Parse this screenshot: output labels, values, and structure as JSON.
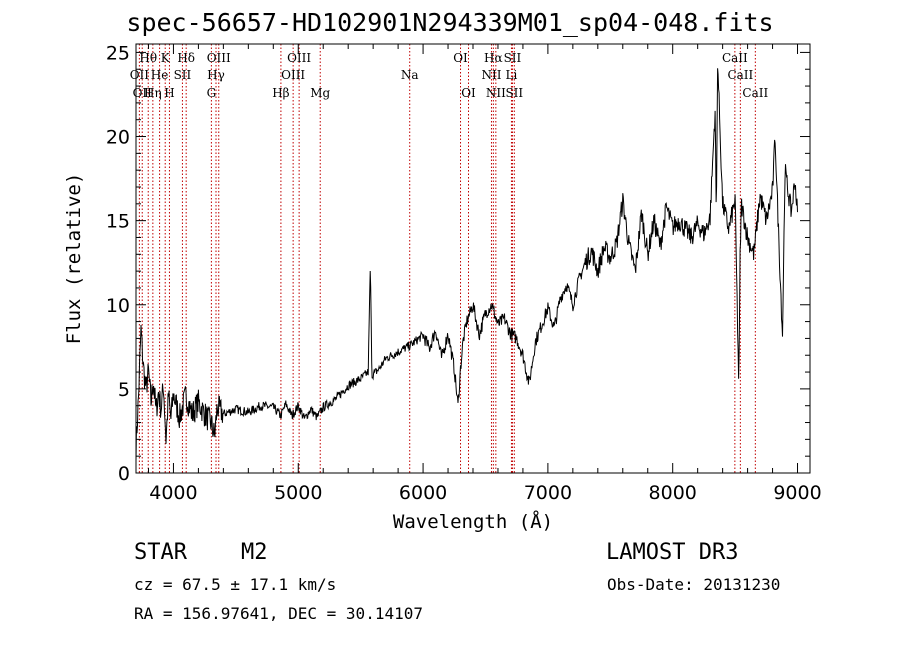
{
  "chart_data": {
    "type": "line",
    "title": "spec-56657-HD102901N294339M01_sp04-048.fits",
    "xlabel": "Wavelength (Å)",
    "ylabel": "Flux (relative)",
    "xlim": [
      3700,
      9100
    ],
    "ylim": [
      0,
      25.5
    ],
    "xticks": [
      4000,
      5000,
      6000,
      7000,
      8000,
      9000
    ],
    "yticks": [
      0,
      5,
      10,
      15,
      20,
      25
    ],
    "spectrum": {
      "x": [
        3700,
        3720,
        3740,
        3760,
        3780,
        3800,
        3820,
        3840,
        3860,
        3880,
        3900,
        3920,
        3940,
        3960,
        3980,
        4000,
        4050,
        4100,
        4150,
        4200,
        4250,
        4300,
        4330,
        4350,
        4400,
        4500,
        4600,
        4700,
        4800,
        4860,
        4900,
        4950,
        5000,
        5050,
        5100,
        5150,
        5200,
        5300,
        5400,
        5500,
        5560,
        5577,
        5590,
        5650,
        5700,
        5800,
        5900,
        6000,
        6050,
        6100,
        6150,
        6200,
        6250,
        6280,
        6300,
        6320,
        6350,
        6400,
        6450,
        6500,
        6550,
        6600,
        6650,
        6700,
        6750,
        6800,
        6850,
        6900,
        6950,
        7000,
        7050,
        7100,
        7150,
        7200,
        7250,
        7300,
        7350,
        7400,
        7450,
        7500,
        7550,
        7600,
        7650,
        7700,
        7750,
        7800,
        7850,
        7900,
        7950,
        8000,
        8050,
        8100,
        8150,
        8200,
        8250,
        8300,
        8340,
        8350,
        8360,
        8400,
        8450,
        8500,
        8530,
        8540,
        8550,
        8600,
        8650,
        8700,
        8750,
        8800,
        8820,
        8850,
        8880,
        8900,
        8950,
        8980,
        9000
      ],
      "y": [
        1.5,
        4.5,
        8.5,
        6.2,
        5.0,
        6.0,
        4.2,
        5.5,
        3.6,
        4.8,
        3.8,
        5.2,
        2.0,
        4.6,
        3.2,
        4.7,
        3.3,
        4.6,
        3.5,
        4.2,
        3.5,
        3.0,
        2.2,
        3.9,
        3.5,
        3.8,
        3.6,
        4.0,
        3.9,
        3.4,
        4.1,
        3.4,
        4.0,
        3.2,
        3.8,
        3.3,
        3.9,
        4.4,
        5.2,
        5.6,
        6.0,
        12.4,
        5.8,
        6.2,
        6.8,
        7.2,
        7.6,
        8.2,
        7.4,
        8.5,
        6.8,
        8.3,
        6.2,
        4.0,
        6.2,
        7.8,
        9.0,
        10.0,
        8.2,
        9.5,
        10.0,
        8.8,
        9.2,
        8.3,
        8.0,
        7.0,
        5.3,
        7.8,
        8.8,
        9.8,
        8.6,
        10.4,
        11.2,
        10.0,
        11.5,
        12.5,
        13.2,
        12.0,
        13.4,
        12.8,
        13.6,
        16.2,
        13.5,
        12.0,
        15.5,
        13.0,
        15.0,
        13.5,
        15.8,
        14.6,
        15.0,
        14.5,
        14.0,
        14.8,
        14.2,
        15.2,
        21.6,
        14.8,
        24.6,
        16.0,
        14.5,
        16.2,
        5.0,
        12.8,
        16.0,
        14.0,
        13.0,
        16.5,
        15.0,
        16.8,
        20.0,
        14.0,
        8.2,
        18.0,
        15.5,
        17.4,
        15.4
      ]
    },
    "lines": [
      {
        "x": 3727,
        "label": "OII",
        "row": 2
      },
      {
        "x": 3750,
        "label": "OII",
        "row": 3
      },
      {
        "x": 3798,
        "label": "Hθ",
        "row": 1
      },
      {
        "x": 3835,
        "label": "Hη",
        "row": 3
      },
      {
        "x": 3889,
        "label": "He",
        "row": 2
      },
      {
        "x": 3934,
        "label": "K",
        "row": 1
      },
      {
        "x": 3968,
        "label": "H",
        "row": 3
      },
      {
        "x": 4072,
        "label": "SII",
        "row": 2
      },
      {
        "x": 4102,
        "label": "Hδ",
        "row": 1
      },
      {
        "x": 4304,
        "label": "G",
        "row": 3
      },
      {
        "x": 4341,
        "label": "Hγ",
        "row": 2
      },
      {
        "x": 4363,
        "label": "OIII",
        "row": 1
      },
      {
        "x": 4861,
        "label": "Hβ",
        "row": 3
      },
      {
        "x": 4959,
        "label": "OIII",
        "row": 2
      },
      {
        "x": 5007,
        "label": "OIII",
        "row": 1
      },
      {
        "x": 5176,
        "label": "Mg",
        "row": 3
      },
      {
        "x": 5893,
        "label": "Na",
        "row": 2
      },
      {
        "x": 6300,
        "label": "OI",
        "row": 1
      },
      {
        "x": 6364,
        "label": "OI",
        "row": 3
      },
      {
        "x": 6548,
        "label": "NII",
        "row": 2
      },
      {
        "x": 6563,
        "label": "Hα",
        "row": 1
      },
      {
        "x": 6583,
        "label": "NII",
        "row": 3
      },
      {
        "x": 6708,
        "label": "Li",
        "row": 2
      },
      {
        "x": 6716,
        "label": "SII",
        "row": 1
      },
      {
        "x": 6731,
        "label": "SII",
        "row": 3
      },
      {
        "x": 8498,
        "label": "CaII",
        "row": 1
      },
      {
        "x": 8542,
        "label": "CaII",
        "row": 2
      },
      {
        "x": 8662,
        "label": "CaII",
        "row": 3
      }
    ],
    "line_color": "#c00000"
  },
  "info": {
    "object_class": "STAR",
    "subclass": "M2",
    "survey": "LAMOST DR3",
    "redshift": "cz = 67.5 ± 17.1 km/s",
    "obs_date": "Obs-Date: 20131230",
    "coords": "RA = 156.97641, DEC =  30.14107"
  }
}
